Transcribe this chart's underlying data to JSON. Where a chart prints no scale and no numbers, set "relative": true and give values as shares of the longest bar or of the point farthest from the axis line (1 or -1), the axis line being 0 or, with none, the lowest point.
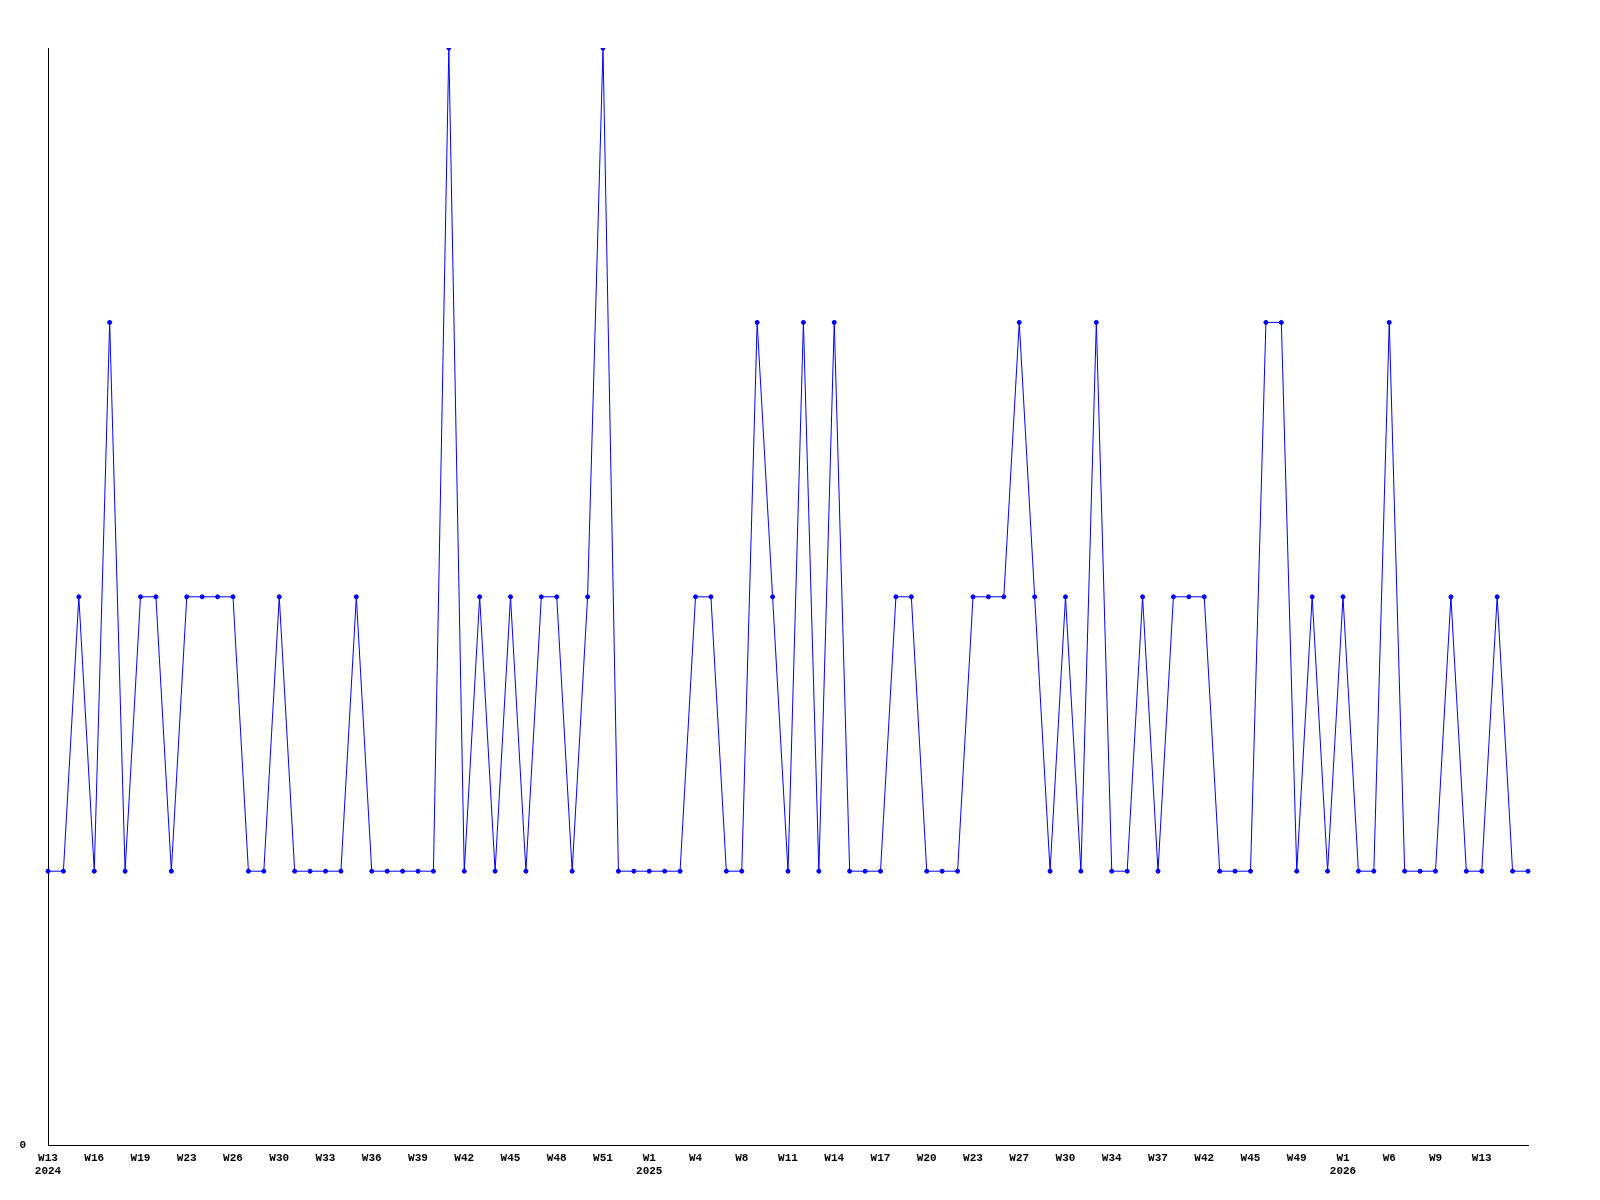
{
  "chart_data": {
    "type": "line",
    "relative": true,
    "marker": "circle",
    "line_style": "solid",
    "categories": [
      "W13\n2024",
      null,
      null,
      "W16",
      null,
      null,
      "W19",
      null,
      null,
      "W23",
      null,
      null,
      "W26",
      null,
      null,
      "W30",
      null,
      null,
      "W33",
      null,
      null,
      "W36",
      null,
      null,
      "W39",
      null,
      null,
      "W42",
      null,
      null,
      "W45",
      null,
      null,
      "W48",
      null,
      null,
      "W51",
      null,
      null,
      "W1\n2025",
      null,
      null,
      "W4",
      null,
      null,
      "W8",
      null,
      null,
      "W11",
      null,
      null,
      "W14",
      null,
      null,
      "W17",
      null,
      null,
      "W20",
      null,
      null,
      "W23",
      null,
      null,
      "W27",
      null,
      null,
      "W30",
      null,
      null,
      "W34",
      null,
      null,
      "W37",
      null,
      null,
      "W42",
      null,
      null,
      "W45",
      null,
      null,
      "W49",
      null,
      null,
      "W1\n2026",
      null,
      null,
      "W6",
      null,
      null,
      "W9",
      null,
      null,
      "W13",
      null,
      null,
      null
    ],
    "series": [
      {
        "color": "#0000ff",
        "values": [
          0.25,
          0.25,
          0.5,
          0.25,
          0.75,
          0.25,
          0.5,
          0.5,
          0.25,
          0.5,
          0.5,
          0.5,
          0.5,
          0.25,
          0.25,
          0.5,
          0.25,
          0.25,
          0.25,
          0.25,
          0.5,
          0.25,
          0.25,
          0.25,
          0.25,
          0.25,
          1,
          0.25,
          0.5,
          0.25,
          0.5,
          0.25,
          0.5,
          0.5,
          0.25,
          0.5,
          1,
          0.25,
          0.25,
          0.25,
          0.25,
          0.25,
          0.5,
          0.5,
          0.25,
          0.25,
          0.75,
          0.5,
          0.25,
          0.75,
          0.25,
          0.75,
          0.25,
          0.25,
          0.25,
          0.5,
          0.5,
          0.25,
          0.25,
          0.25,
          0.5,
          0.5,
          0.5,
          0.75,
          0.5,
          0.25,
          0.5,
          0.25,
          0.75,
          0.25,
          0.25,
          0.5,
          0.25,
          0.5,
          0.5,
          0.5,
          0.25,
          0.25,
          0.25,
          0.75,
          0.75,
          0.25,
          0.5,
          0.25,
          0.5,
          0.25,
          0.25,
          0.75,
          0.25,
          0.25,
          0.25,
          0.5,
          0.25,
          0.25,
          0.5,
          0.25,
          0.25
        ]
      }
    ],
    "annotations": [
      "0"
    ]
  }
}
